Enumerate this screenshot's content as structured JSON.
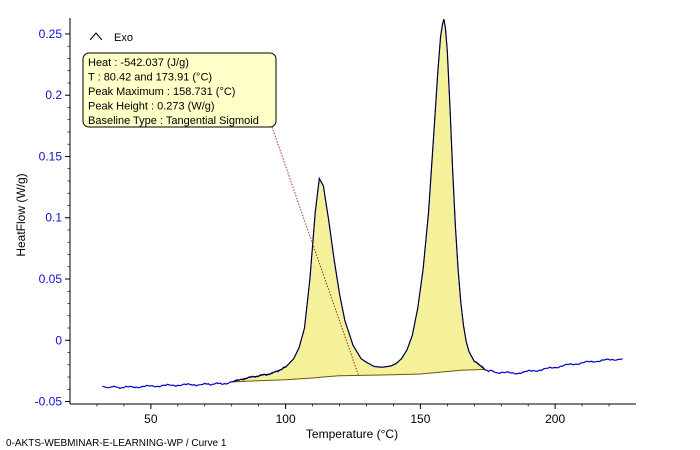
{
  "chart_data": {
    "type": "line",
    "xlabel": "Temperature (°C)",
    "ylabel": "HeatFlow (W/g)",
    "xlim": [
      20,
      230
    ],
    "ylim": [
      -0.052,
      0.263
    ],
    "x_ticks": [
      50,
      100,
      150,
      200
    ],
    "y_ticks": [
      -0.05,
      0,
      0.05,
      0.1,
      0.15,
      0.2,
      0.25
    ],
    "x_tick_labels": [
      "50",
      "100",
      "150",
      "200"
    ],
    "y_tick_labels": [
      "-0.05",
      "0",
      "0.05",
      "0.1",
      "0.15",
      "0.2",
      "0.25"
    ],
    "exo_label": "Exo",
    "colors": {
      "curve": "#0000cc",
      "fit": "#000000",
      "fill": "#f5f09a",
      "baseline": "#6b5a00",
      "y_ticks": "#1010d0",
      "annotation_bg": "#ffffc8"
    },
    "series": [
      {
        "x": [
          32,
          40,
          50,
          60,
          70,
          75,
          78,
          80.42,
          85,
          90,
          95,
          100,
          103,
          105,
          107,
          109,
          111,
          112.5,
          114,
          116,
          118,
          120,
          122,
          125,
          128,
          130,
          133,
          136,
          139,
          141,
          143,
          145,
          147,
          149,
          151,
          153,
          155,
          156.5,
          157.5,
          158.2,
          158.731,
          159.3,
          160,
          161,
          162,
          163,
          164,
          165,
          166,
          167,
          168,
          170,
          173.91,
          178,
          185,
          195,
          205,
          215,
          225
        ],
        "y": [
          -0.038,
          -0.0385,
          -0.0375,
          -0.0365,
          -0.036,
          -0.0355,
          -0.035,
          -0.034,
          -0.031,
          -0.029,
          -0.027,
          -0.022,
          -0.015,
          -0.006,
          0.01,
          0.05,
          0.105,
          0.132,
          0.126,
          0.098,
          0.066,
          0.038,
          0.016,
          -0.004,
          -0.015,
          -0.018,
          -0.0215,
          -0.022,
          -0.021,
          -0.019,
          -0.015,
          -0.008,
          0.004,
          0.026,
          0.058,
          0.104,
          0.17,
          0.22,
          0.248,
          0.258,
          0.262,
          0.255,
          0.236,
          0.19,
          0.138,
          0.093,
          0.058,
          0.031,
          0.012,
          -0.001,
          -0.009,
          -0.017,
          -0.024,
          -0.026,
          -0.027,
          -0.024,
          -0.02,
          -0.017,
          -0.015
        ]
      }
    ],
    "baseline": {
      "x": [
        80.42,
        90,
        100,
        110,
        115,
        120,
        130,
        140,
        150,
        160,
        165,
        173.91
      ],
      "y": [
        -0.034,
        -0.033,
        -0.0322,
        -0.0308,
        -0.0298,
        -0.029,
        -0.0285,
        -0.0282,
        -0.0275,
        -0.0255,
        -0.0245,
        -0.0238
      ]
    },
    "annotation": {
      "lines": [
        "Heat :  -542.037 (J/g)",
        "T : 80.42 and 173.91 (°C)",
        "Peak Maximum :  158.731 (°C)",
        "Peak Height :  0.273 (W/g)",
        "Baseline Type :  Tangential Sigmoid"
      ],
      "pointer_to": [
        127,
        -0.0285
      ]
    },
    "footer": "0-AKTS-WEBMINAR-E-LEARNING-WP / Curve 1"
  }
}
